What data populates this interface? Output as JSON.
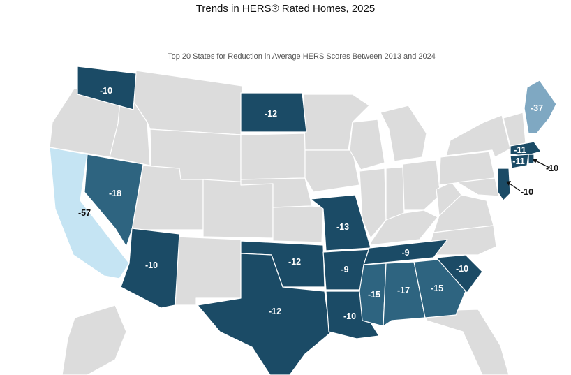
{
  "header": {
    "title": "Trends in HERS® Rated Homes, 2025"
  },
  "map": {
    "title": "Top 20 States for Reduction in Average HERS Scores Between 2013 and 2024",
    "colors": {
      "base": "#dcdcdc",
      "dark": "#1b4b66",
      "mid": "#2e6480",
      "light": "#7fa8c2",
      "lightest": "#c5e4f3",
      "label_on_dark": "#ffffff",
      "label_on_light": "#111111"
    },
    "states": [
      {
        "state": "WA",
        "value": "-10"
      },
      {
        "state": "ND",
        "value": "-12"
      },
      {
        "state": "ME",
        "value": "-37"
      },
      {
        "state": "MA",
        "value": "-11"
      },
      {
        "state": "CT",
        "value": "-11"
      },
      {
        "state": "RI",
        "value": "-10"
      },
      {
        "state": "NJ",
        "value": "-10"
      },
      {
        "state": "NV",
        "value": "-18"
      },
      {
        "state": "CA",
        "value": "-57"
      },
      {
        "state": "MO",
        "value": "-13"
      },
      {
        "state": "AZ",
        "value": "-10"
      },
      {
        "state": "OK",
        "value": "-12"
      },
      {
        "state": "AR",
        "value": "-9"
      },
      {
        "state": "TN",
        "value": "-9"
      },
      {
        "state": "SC",
        "value": "-10"
      },
      {
        "state": "TX",
        "value": "-12"
      },
      {
        "state": "LA",
        "value": "-10"
      },
      {
        "state": "MS",
        "value": "-15"
      },
      {
        "state": "AL",
        "value": "-17"
      },
      {
        "state": "GA",
        "value": "-15"
      }
    ]
  }
}
